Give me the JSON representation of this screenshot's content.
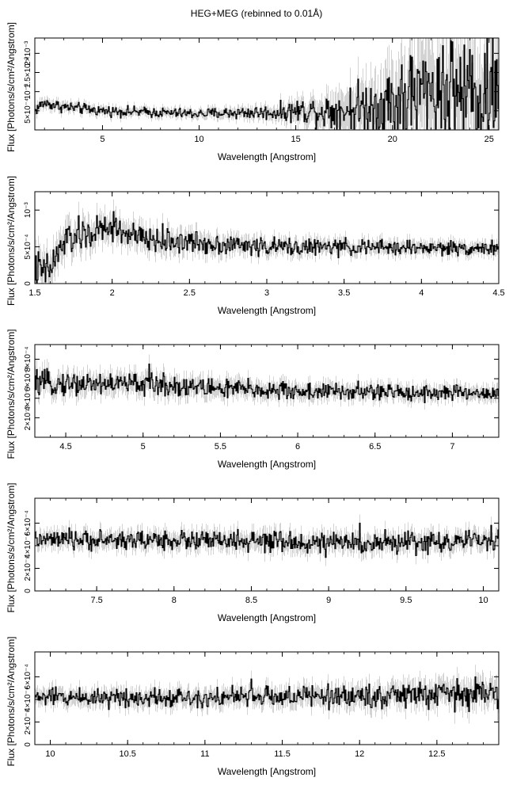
{
  "figure": {
    "title": "HEG+MEG (rebinned to 0.01Å)"
  },
  "chart_data": [
    {
      "type": "line",
      "xlabel": "Wavelength [Angstrom]",
      "ylabel": "Flux [Photons/s/cm²/Angstrom]",
      "xlim": [
        1.5,
        25.5
      ],
      "ylim": [
        0,
        0.0024
      ],
      "xticks": [
        {
          "value": 5,
          "label": "5"
        },
        {
          "value": 10,
          "label": "10"
        },
        {
          "value": 15,
          "label": "15"
        },
        {
          "value": 20,
          "label": "20"
        },
        {
          "value": 25,
          "label": "25"
        }
      ],
      "yticks": [
        {
          "value": 0.0005,
          "label": "5×10⁻⁴"
        },
        {
          "value": 0.001,
          "label": "10⁻³"
        },
        {
          "value": 0.0015,
          "label": "1.5×10⁻³"
        },
        {
          "value": 0.002,
          "label": "2×10⁻³"
        }
      ],
      "series": [
        {
          "profile": [
            [
              1.5,
              0.0005
            ],
            [
              1.8,
              0.00065
            ],
            [
              2.0,
              0.0007
            ],
            [
              3.0,
              0.0006
            ],
            [
              5.0,
              0.0005
            ],
            [
              8.0,
              0.00045
            ],
            [
              10.0,
              0.00042
            ],
            [
              12.0,
              0.00045
            ],
            [
              14.0,
              0.00045
            ],
            [
              15.0,
              0.0005
            ],
            [
              17.0,
              0.0005
            ],
            [
              19.0,
              0.0006
            ],
            [
              21.0,
              0.0008
            ],
            [
              23.0,
              0.0009
            ],
            [
              25.5,
              0.0009
            ]
          ],
          "noise": [
            [
              1.5,
              0.00012
            ],
            [
              5.0,
              0.0001
            ],
            [
              10.0,
              0.0001
            ],
            [
              14.0,
              0.00015
            ],
            [
              16.0,
              0.0003
            ],
            [
              18.0,
              0.0005
            ],
            [
              20.0,
              0.0008
            ],
            [
              22.0,
              0.0011
            ],
            [
              25.5,
              0.0012
            ]
          ],
          "spikes": [
            {
              "x": 20.5,
              "y": 0.0017
            },
            {
              "x": 21.0,
              "y": 0.0019
            },
            {
              "x": 21.6,
              "y": 0.0018
            },
            {
              "x": 22.1,
              "y": 0.0015
            },
            {
              "x": 22.6,
              "y": 0.0022
            },
            {
              "x": 23.1,
              "y": 0.0023
            },
            {
              "x": 23.5,
              "y": 0.0019
            },
            {
              "x": 24.0,
              "y": 0.0021
            },
            {
              "x": 24.8,
              "y": 0.002
            },
            {
              "x": 25.3,
              "y": 0.0018
            }
          ]
        }
      ]
    },
    {
      "type": "line",
      "xlabel": "Wavelength [Angstrom]",
      "ylabel": "Flux [Photons/s/cm²/Angstrom]",
      "xlim": [
        1.5,
        4.5
      ],
      "ylim": [
        0,
        0.00125
      ],
      "xticks": [
        {
          "value": 1.5,
          "label": "1.5"
        },
        {
          "value": 2,
          "label": "2"
        },
        {
          "value": 2.5,
          "label": "2.5"
        },
        {
          "value": 3,
          "label": "3"
        },
        {
          "value": 3.5,
          "label": "3.5"
        },
        {
          "value": 4,
          "label": "4"
        },
        {
          "value": 4.5,
          "label": "4.5"
        }
      ],
      "yticks": [
        {
          "value": 0,
          "label": "0"
        },
        {
          "value": 0.0005,
          "label": "5×10⁻⁴"
        },
        {
          "value": 0.001,
          "label": "10⁻³"
        }
      ],
      "series": [
        {
          "profile": [
            [
              1.5,
              0.0002
            ],
            [
              1.56,
              0.00015
            ],
            [
              1.6,
              0.0002
            ],
            [
              1.65,
              0.0004
            ],
            [
              1.7,
              0.0006
            ],
            [
              1.8,
              0.00065
            ],
            [
              2.0,
              0.00075
            ],
            [
              2.2,
              0.0006
            ],
            [
              3.0,
              0.0005
            ],
            [
              4.5,
              0.00048
            ]
          ],
          "noise": [
            [
              1.5,
              0.0002
            ],
            [
              1.7,
              0.00018
            ],
            [
              2.0,
              0.00015
            ],
            [
              3.0,
              9e-05
            ],
            [
              4.5,
              7e-05
            ]
          ],
          "spikes": [
            {
              "x": 2.01,
              "y": 0.00098
            },
            {
              "x": 1.92,
              "y": 0.00085
            }
          ]
        }
      ]
    },
    {
      "type": "line",
      "xlabel": "Wavelength [Angstrom]",
      "ylabel": "Flux [Photons/s/cm²/Angstrom]",
      "xlim": [
        4.3,
        7.3
      ],
      "ylim": [
        0,
        0.00095
      ],
      "xticks": [
        {
          "value": 4.5,
          "label": "4.5"
        },
        {
          "value": 5,
          "label": "5"
        },
        {
          "value": 5.5,
          "label": "5.5"
        },
        {
          "value": 6,
          "label": "6"
        },
        {
          "value": 6.5,
          "label": "6.5"
        },
        {
          "value": 7,
          "label": "7"
        }
      ],
      "yticks": [
        {
          "value": 0.0002,
          "label": "2×10⁻⁴"
        },
        {
          "value": 0.0004,
          "label": "4×10⁻⁴"
        },
        {
          "value": 0.0006,
          "label": "6×10⁻⁴"
        },
        {
          "value": 0.0008,
          "label": "8×10⁻⁴"
        }
      ],
      "series": [
        {
          "profile": [
            [
              4.3,
              0.00055
            ],
            [
              5.0,
              0.00055
            ],
            [
              5.5,
              0.0005
            ],
            [
              6.0,
              0.00047
            ],
            [
              7.3,
              0.00045
            ]
          ],
          "noise": [
            [
              4.3,
              9e-05
            ],
            [
              5.0,
              9e-05
            ],
            [
              6.0,
              7e-05
            ],
            [
              7.3,
              6e-05
            ]
          ],
          "spikes": [
            {
              "x": 5.04,
              "y": 0.00075
            }
          ]
        }
      ]
    },
    {
      "type": "line",
      "xlabel": "Wavelength [Angstrom]",
      "ylabel": "Flux [Photons/s/cm²/Angstrom]",
      "xlim": [
        7.1,
        10.1
      ],
      "ylim": [
        0,
        0.00082
      ],
      "xticks": [
        {
          "value": 7.5,
          "label": "7.5"
        },
        {
          "value": 8,
          "label": "8"
        },
        {
          "value": 8.5,
          "label": "8.5"
        },
        {
          "value": 9,
          "label": "9"
        },
        {
          "value": 9.5,
          "label": "9.5"
        },
        {
          "value": 10,
          "label": "10"
        }
      ],
      "yticks": [
        {
          "value": 0,
          "label": "0"
        },
        {
          "value": 0.0002,
          "label": "2×10⁻⁴"
        },
        {
          "value": 0.0004,
          "label": "4×10⁻⁴"
        },
        {
          "value": 0.0006,
          "label": "6×10⁻⁴"
        }
      ],
      "series": [
        {
          "profile": [
            [
              7.1,
              0.00045
            ],
            [
              8.0,
              0.00045
            ],
            [
              9.0,
              0.00042
            ],
            [
              10.1,
              0.00044
            ]
          ],
          "noise": [
            [
              7.1,
              6e-05
            ],
            [
              8.5,
              7e-05
            ],
            [
              10.1,
              7e-05
            ]
          ],
          "spikes": [
            {
              "x": 9.2,
              "y": 0.0006
            },
            {
              "x": 10.05,
              "y": 0.00058
            }
          ]
        }
      ]
    },
    {
      "type": "line",
      "xlabel": "Wavelength [Angstrom]",
      "ylabel": "Flux [Photons/s/cm²/Angstrom]",
      "xlim": [
        9.9,
        12.9
      ],
      "ylim": [
        0,
        0.00082
      ],
      "xticks": [
        {
          "value": 10,
          "label": "10"
        },
        {
          "value": 10.5,
          "label": "10.5"
        },
        {
          "value": 11,
          "label": "11"
        },
        {
          "value": 11.5,
          "label": "11.5"
        },
        {
          "value": 12,
          "label": "12"
        },
        {
          "value": 12.5,
          "label": "12.5"
        }
      ],
      "yticks": [
        {
          "value": 0,
          "label": "0"
        },
        {
          "value": 0.0002,
          "label": "2×10⁻⁴"
        },
        {
          "value": 0.0004,
          "label": "4×10⁻⁴"
        },
        {
          "value": 0.0006,
          "label": "6×10⁻⁴"
        }
      ],
      "series": [
        {
          "profile": [
            [
              9.9,
              0.00042
            ],
            [
              11.0,
              0.00042
            ],
            [
              12.0,
              0.00043
            ],
            [
              12.9,
              0.00045
            ]
          ],
          "noise": [
            [
              9.9,
              6e-05
            ],
            [
              11.5,
              7e-05
            ],
            [
              12.9,
              0.0001
            ]
          ],
          "spikes": [
            {
              "x": 12.75,
              "y": 0.0006
            },
            {
              "x": 11.3,
              "y": 0.00058
            }
          ]
        }
      ]
    }
  ]
}
